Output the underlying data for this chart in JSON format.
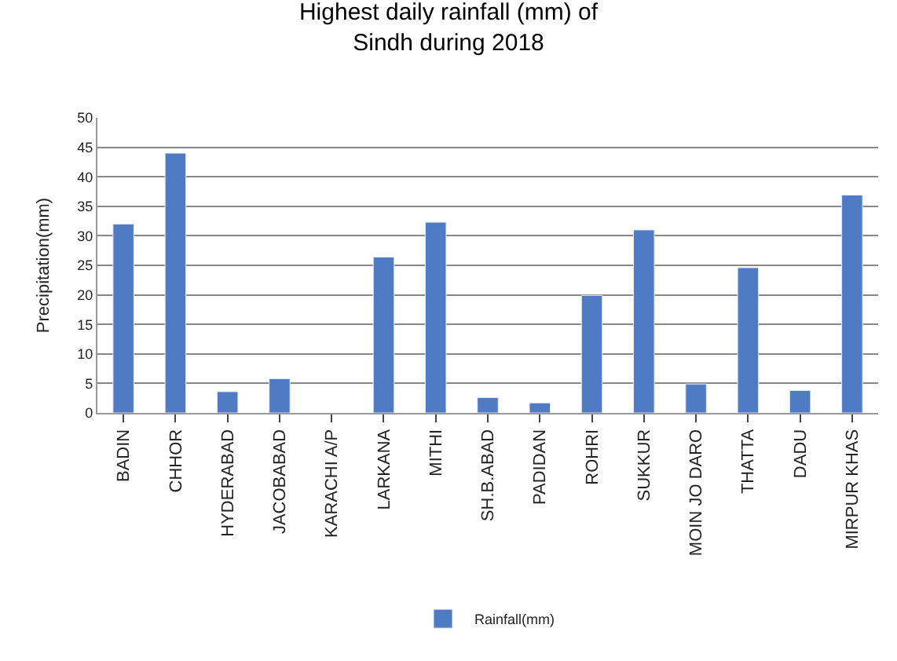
{
  "chart_data": {
    "type": "bar",
    "title": "Highest daily rainfall (mm) of\nSindh during 2018",
    "ylabel": "Precipitation(mm)",
    "categories": [
      "BADIN",
      "CHHOR",
      "HYDERABAD",
      "JACOBABAD",
      "KARACHI A/P",
      "LARKANA",
      "MITHI",
      "SH.B.ABAD",
      "PADIDAN",
      "ROHRI",
      "SUKKUR",
      "MOIN JO DARO",
      "THATTA",
      "DADU",
      "MIRPUR KHAS"
    ],
    "series": [
      {
        "name": "Rainfall(mm)",
        "color": "#4f7bc4",
        "values": [
          32,
          44,
          3.6,
          5.8,
          null,
          26.4,
          32.3,
          2.6,
          1.7,
          19.9,
          31,
          4.9,
          24.6,
          3.8,
          36.9
        ]
      }
    ],
    "ylim": [
      0,
      50
    ],
    "yticks": [
      0,
      5,
      10,
      15,
      20,
      25,
      30,
      35,
      40,
      45,
      50
    ],
    "grid": "y",
    "legend": "bottom"
  }
}
